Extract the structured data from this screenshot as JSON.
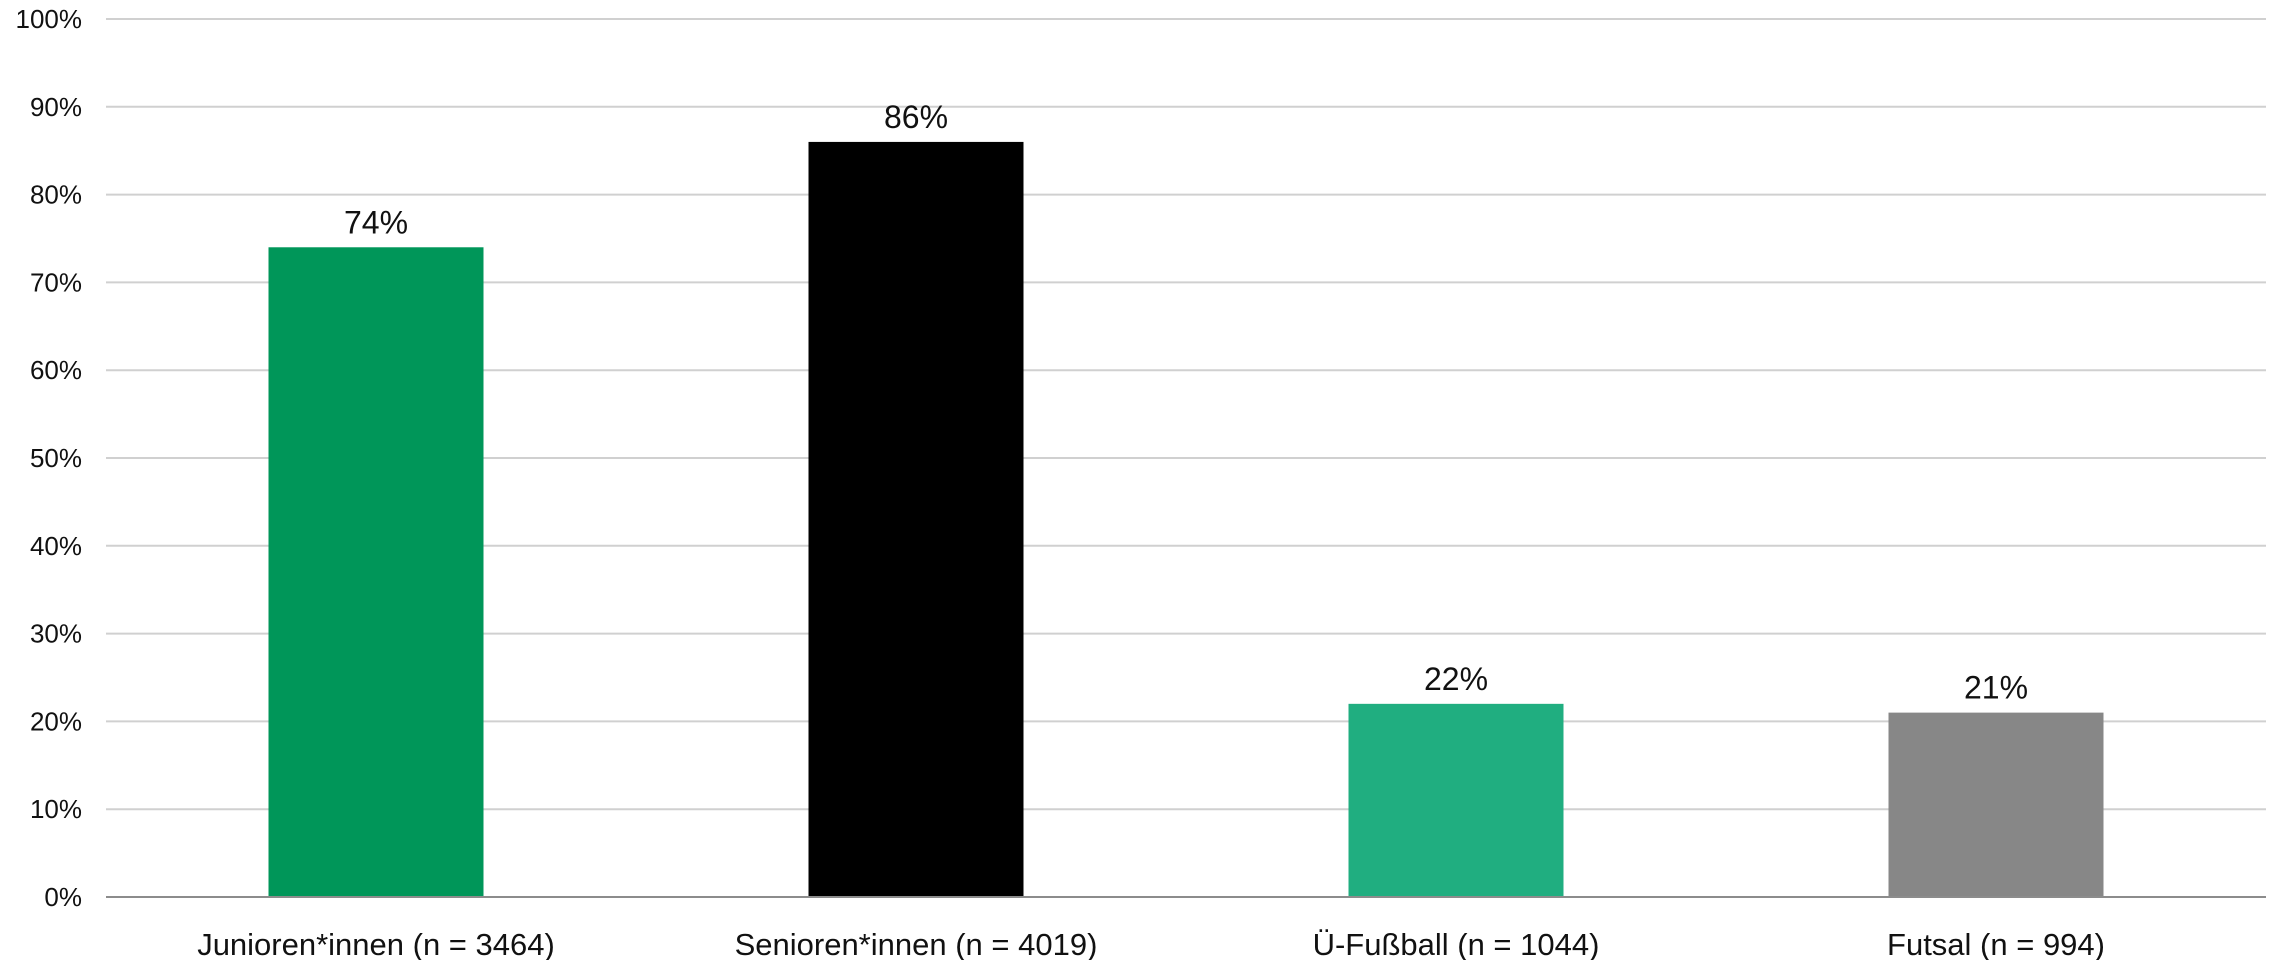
{
  "chart_data": {
    "type": "bar",
    "categories": [
      "Junioren*innen (n = 3464)",
      "Senioren*innen (n = 4019)",
      "Ü-Fußball (n = 1044)",
      "Futsal (n = 994)"
    ],
    "values": [
      74,
      86,
      22,
      21
    ],
    "data_labels": [
      "74%",
      "86%",
      "22%",
      "21%"
    ],
    "bar_colors": [
      "#009659",
      "#000000",
      "#20AE80",
      "#878787"
    ],
    "y_ticks": [
      "0%",
      "10%",
      "20%",
      "30%",
      "40%",
      "50%",
      "60%",
      "70%",
      "80%",
      "90%",
      "100%"
    ],
    "ylim": [
      0,
      100
    ],
    "grid": true,
    "legend": "none",
    "title": "",
    "xlabel": "",
    "ylabel": ""
  }
}
